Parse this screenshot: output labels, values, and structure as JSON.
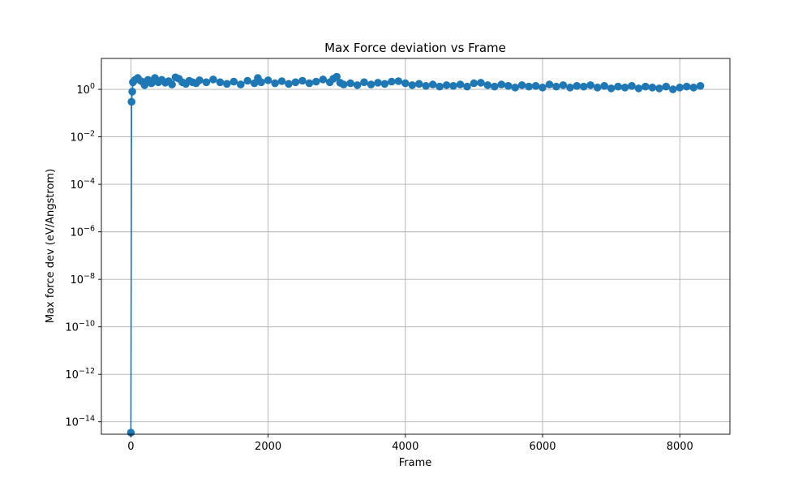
{
  "chart_data": {
    "type": "line",
    "title": "Max Force deviation vs Frame",
    "xlabel": "Frame",
    "ylabel": "Max force dev (eV/Angstrom)",
    "xlim": [
      -430,
      8730
    ],
    "ylim": [
      3e-15,
      20
    ],
    "yscale": "log",
    "grid": true,
    "marker": "circle",
    "color": "#1f77b4",
    "x_ticks": [
      {
        "value": 0,
        "label": "0"
      },
      {
        "value": 2000,
        "label": "2000"
      },
      {
        "value": 4000,
        "label": "4000"
      },
      {
        "value": 6000,
        "label": "6000"
      },
      {
        "value": 8000,
        "label": "8000"
      }
    ],
    "y_ticks": [
      {
        "value": 1.0,
        "base": "10",
        "exp": "0"
      },
      {
        "value": 0.01,
        "base": "10",
        "exp": "−2"
      },
      {
        "value": 0.0001,
        "base": "10",
        "exp": "−4"
      },
      {
        "value": 1e-06,
        "base": "10",
        "exp": "−6"
      },
      {
        "value": 1e-08,
        "base": "10",
        "exp": "−8"
      },
      {
        "value": 1e-10,
        "base": "10",
        "exp": "−10"
      },
      {
        "value": 1e-12,
        "base": "10",
        "exp": "−12"
      },
      {
        "value": 1e-14,
        "base": "10",
        "exp": "−14"
      }
    ],
    "series": [
      {
        "x": [
          0,
          10,
          20,
          30,
          60,
          100,
          150,
          200,
          250,
          300,
          350,
          400,
          450,
          500,
          550,
          600,
          650,
          700,
          750,
          800,
          850,
          900,
          950,
          1000,
          1100,
          1200,
          1300,
          1400,
          1500,
          1600,
          1700,
          1800,
          1850,
          1900,
          2000,
          2100,
          2200,
          2300,
          2400,
          2500,
          2600,
          2700,
          2800,
          2900,
          2950,
          3000,
          3050,
          3100,
          3200,
          3300,
          3400,
          3500,
          3600,
          3700,
          3800,
          3900,
          4000,
          4100,
          4200,
          4300,
          4400,
          4500,
          4600,
          4700,
          4800,
          4900,
          5000,
          5100,
          5200,
          5300,
          5400,
          5500,
          5600,
          5700,
          5800,
          5900,
          6000,
          6100,
          6200,
          6300,
          6400,
          6500,
          6600,
          6700,
          6800,
          6900,
          7000,
          7100,
          7200,
          7300,
          7400,
          7500,
          7600,
          7700,
          7800,
          7900,
          8000,
          8100,
          8200,
          8300
        ],
        "y": [
          3.5e-15,
          0.3,
          0.8,
          2.0,
          2.5,
          3.0,
          2.2,
          1.5,
          2.5,
          1.8,
          3.0,
          2.0,
          2.5,
          1.9,
          2.2,
          1.6,
          3.2,
          2.8,
          2.0,
          1.7,
          2.3,
          2.0,
          1.8,
          2.4,
          2.0,
          2.6,
          2.0,
          1.7,
          2.1,
          1.6,
          2.3,
          1.8,
          3.0,
          2.0,
          2.4,
          1.8,
          2.2,
          1.7,
          2.0,
          2.3,
          1.8,
          2.1,
          2.6,
          2.0,
          2.8,
          3.4,
          1.9,
          1.6,
          1.8,
          1.5,
          2.0,
          1.6,
          1.9,
          1.7,
          2.1,
          2.2,
          1.8,
          1.5,
          1.7,
          1.4,
          1.6,
          1.3,
          1.5,
          1.4,
          1.6,
          1.3,
          1.8,
          1.9,
          1.5,
          1.3,
          1.6,
          1.4,
          1.2,
          1.5,
          1.3,
          1.4,
          1.2,
          1.6,
          1.3,
          1.5,
          1.2,
          1.4,
          1.3,
          1.5,
          1.2,
          1.4,
          1.1,
          1.3,
          1.2,
          1.4,
          1.1,
          1.3,
          1.2,
          1.1,
          1.3,
          1.0,
          1.2,
          1.3,
          1.2,
          1.4
        ]
      }
    ]
  }
}
